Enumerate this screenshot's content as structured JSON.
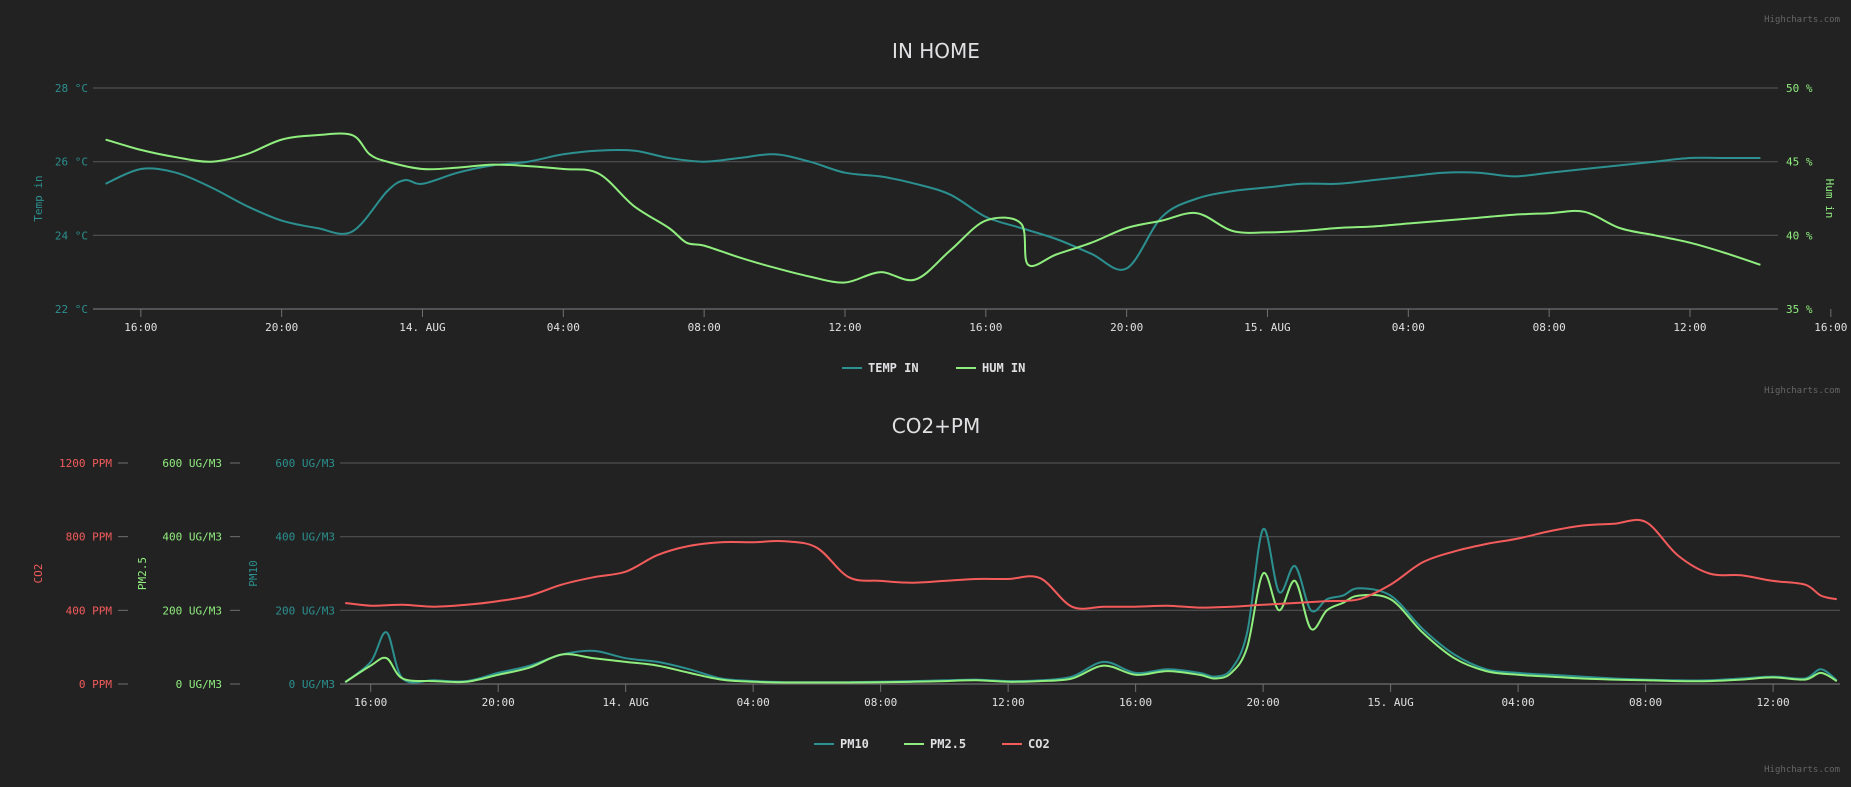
{
  "credits": "Highcharts.com",
  "chart_data": [
    {
      "type": "line",
      "title": "IN HOME",
      "x_ticks": [
        "16:00",
        "20:00",
        "14. Aug",
        "04:00",
        "08:00",
        "12:00",
        "16:00",
        "20:00",
        "15. Aug",
        "04:00",
        "08:00",
        "12:00",
        "16:00"
      ],
      "x_range_hours": [
        -1.5,
        46.5
      ],
      "y_axes": [
        {
          "name": "Temp in",
          "side": "left",
          "unit": "°C",
          "range": [
            22,
            28
          ],
          "ticks": [
            "28 °C",
            "26 °C",
            "24 °C",
            "22 °C"
          ],
          "tick_values": [
            28,
            26,
            24,
            22
          ],
          "color": "#2b908f"
        },
        {
          "name": "Hum in",
          "side": "right",
          "unit": "%",
          "range": [
            35,
            50
          ],
          "ticks": [
            "50 %",
            "45 %",
            "40 %",
            "35 %"
          ],
          "tick_values": [
            50,
            45,
            40,
            35
          ],
          "color": "#90ee7e"
        }
      ],
      "grid": true,
      "legend": "bottom-center",
      "series": [
        {
          "name": "Temp in",
          "axis": 0,
          "color": "#2b908f",
          "x": [
            -1,
            0,
            1,
            2,
            3,
            4,
            5,
            6,
            7,
            7.5,
            8,
            9,
            10,
            11,
            12,
            13,
            14,
            15,
            16,
            17,
            18,
            19,
            20,
            21,
            22,
            23,
            24,
            25,
            26,
            27,
            28,
            29,
            30,
            31,
            32,
            33,
            34,
            35,
            36,
            37,
            38,
            39,
            40,
            41,
            42,
            43,
            44,
            45,
            46
          ],
          "y": [
            25.4,
            25.8,
            25.7,
            25.3,
            24.8,
            24.4,
            24.2,
            24.1,
            25.2,
            25.5,
            25.4,
            25.7,
            25.9,
            26.0,
            26.2,
            26.3,
            26.3,
            26.1,
            26.0,
            26.1,
            26.2,
            26.0,
            25.7,
            25.6,
            25.4,
            25.1,
            24.5,
            24.2,
            23.9,
            23.5,
            23.1,
            24.5,
            25.0,
            25.2,
            25.3,
            25.4,
            25.4,
            25.5,
            25.6,
            25.7,
            25.7,
            25.6,
            25.7,
            25.8,
            25.9,
            26.0,
            26.1,
            26.1,
            26.1
          ]
        },
        {
          "name": "Hum in",
          "axis": 1,
          "color": "#90ee7e",
          "x": [
            -1,
            0,
            1,
            2,
            3,
            4,
            5,
            6,
            6.5,
            7,
            8,
            9,
            10,
            11,
            12,
            13,
            14,
            15,
            15.5,
            16,
            17,
            18,
            19,
            20,
            21,
            22,
            23,
            24,
            25,
            25.2,
            26,
            27,
            28,
            29,
            30,
            31,
            32,
            33,
            34,
            35,
            36,
            37,
            38,
            39,
            40,
            41,
            42,
            43,
            44,
            45,
            46
          ],
          "y": [
            46.5,
            45.8,
            45.3,
            45.0,
            45.5,
            46.5,
            46.8,
            46.8,
            45.5,
            45.0,
            44.5,
            44.6,
            44.8,
            44.7,
            44.5,
            44.2,
            42.0,
            40.5,
            39.5,
            39.3,
            38.5,
            37.8,
            37.2,
            36.8,
            37.5,
            37.0,
            39.0,
            41.0,
            40.8,
            38.0,
            38.7,
            39.5,
            40.5,
            41.0,
            41.5,
            40.3,
            40.2,
            40.3,
            40.5,
            40.6,
            40.8,
            41.0,
            41.2,
            41.4,
            41.5,
            41.6,
            40.5,
            40.0,
            39.5,
            38.8,
            38.0
          ]
        }
      ]
    },
    {
      "type": "line",
      "title": "CO2+PM",
      "x_ticks": [
        "16:00",
        "20:00",
        "14. Aug",
        "04:00",
        "08:00",
        "12:00",
        "16:00",
        "20:00",
        "15. Aug",
        "04:00",
        "08:00",
        "12:00",
        "16:00"
      ],
      "x_range_hours": [
        -0.9,
        46.1
      ],
      "y_axes": [
        {
          "name": "CO2",
          "unit": "PPM",
          "range": [
            0,
            1200
          ],
          "ticks": [
            "1200 PPM",
            "800 PPM",
            "400 PPM",
            "0 PPM"
          ],
          "tick_values": [
            1200,
            800,
            400,
            0
          ],
          "color": "#f45b5b"
        },
        {
          "name": "PM2.5",
          "unit": "UG/M3",
          "range": [
            0,
            600
          ],
          "ticks": [
            "600 UG/M3",
            "400 UG/M3",
            "200 UG/M3",
            "0 UG/M3"
          ],
          "tick_values": [
            600,
            400,
            200,
            0
          ],
          "color": "#90ee7e"
        },
        {
          "name": "PM10",
          "unit": "UG/M3",
          "range": [
            0,
            600
          ],
          "ticks": [
            "600 UG/M3",
            "400 UG/M3",
            "200 UG/M3",
            "0 UG/M3"
          ],
          "tick_values": [
            600,
            400,
            200,
            0
          ],
          "color": "#2b908f"
        }
      ],
      "grid": true,
      "legend": "bottom-center",
      "series": [
        {
          "name": "PM10",
          "axis": 2,
          "color": "#2b908f",
          "x": [
            -0.8,
            0,
            0.5,
            1,
            2,
            3,
            4,
            5,
            6,
            7,
            8,
            9,
            10,
            11,
            12,
            13,
            14,
            15,
            16,
            17,
            18,
            19,
            20,
            21,
            22,
            23,
            24,
            25,
            26,
            26.5,
            27,
            27.5,
            28,
            28.5,
            29,
            29.5,
            30,
            30.5,
            31,
            32,
            33,
            34,
            35,
            36,
            37,
            38,
            39,
            40,
            41,
            42,
            43,
            44,
            45,
            45.5,
            46
          ],
          "y": [
            5,
            60,
            140,
            15,
            10,
            8,
            30,
            50,
            80,
            90,
            70,
            60,
            40,
            15,
            8,
            5,
            5,
            5,
            6,
            8,
            10,
            12,
            8,
            10,
            20,
            60,
            30,
            40,
            30,
            20,
            40,
            140,
            420,
            250,
            320,
            200,
            230,
            240,
            260,
            240,
            150,
            80,
            40,
            30,
            25,
            20,
            15,
            12,
            10,
            10,
            15,
            20,
            15,
            40,
            10
          ]
        },
        {
          "name": "PM2.5",
          "axis": 1,
          "color": "#90ee7e",
          "x": [
            -0.8,
            0,
            0.5,
            1,
            2,
            3,
            4,
            5,
            6,
            7,
            8,
            9,
            10,
            11,
            12,
            13,
            14,
            15,
            16,
            17,
            18,
            19,
            20,
            21,
            22,
            23,
            24,
            25,
            26,
            26.5,
            27,
            27.5,
            28,
            28.5,
            29,
            29.5,
            30,
            30.5,
            31,
            32,
            33,
            34,
            35,
            36,
            37,
            38,
            39,
            40,
            41,
            42,
            43,
            44,
            45,
            45.5,
            46
          ],
          "y": [
            5,
            50,
            70,
            15,
            8,
            6,
            25,
            45,
            80,
            70,
            60,
            50,
            30,
            12,
            6,
            4,
            4,
            4,
            5,
            6,
            8,
            10,
            6,
            8,
            15,
            50,
            25,
            35,
            25,
            15,
            30,
            100,
            300,
            200,
            280,
            150,
            200,
            220,
            240,
            230,
            140,
            70,
            35,
            25,
            20,
            15,
            12,
            10,
            8,
            8,
            12,
            18,
            12,
            30,
            8
          ]
        },
        {
          "name": "CO2",
          "axis": 0,
          "color": "#f45b5b",
          "x": [
            -0.8,
            0,
            1,
            2,
            3,
            4,
            5,
            6,
            7,
            8,
            9,
            10,
            11,
            12,
            13,
            14,
            15,
            16,
            17,
            18,
            19,
            20,
            21,
            22,
            23,
            24,
            25,
            26,
            27,
            28,
            29,
            30,
            31,
            32,
            33,
            34,
            35,
            36,
            37,
            38,
            39,
            40,
            41,
            42,
            43,
            44,
            45,
            45.5,
            46
          ],
          "y": [
            440,
            425,
            430,
            420,
            430,
            450,
            480,
            540,
            580,
            610,
            700,
            750,
            770,
            770,
            775,
            740,
            580,
            560,
            550,
            560,
            570,
            570,
            575,
            420,
            420,
            420,
            425,
            415,
            420,
            430,
            440,
            450,
            460,
            540,
            660,
            720,
            760,
            790,
            830,
            860,
            870,
            880,
            700,
            600,
            590,
            560,
            540,
            480,
            460
          ]
        }
      ]
    }
  ]
}
